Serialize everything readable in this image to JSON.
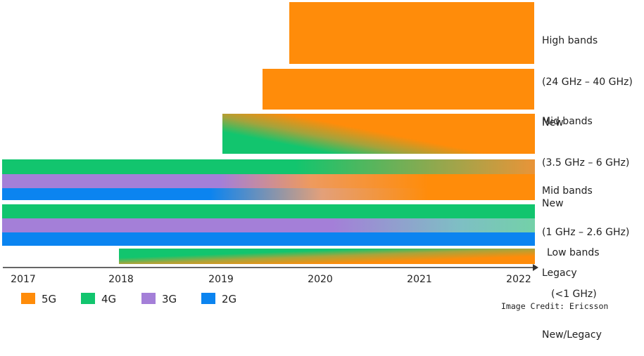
{
  "chart_data": {
    "type": "area",
    "x_ticks": [
      "2017",
      "2018",
      "2019",
      "2020",
      "2021",
      "2022"
    ],
    "xlim": [
      2017,
      2022
    ],
    "legend_position": "bottom-left",
    "colors": {
      "5G": "#ff8c0a",
      "4G": "#12c56e",
      "3G": "#a47fd8",
      "2G": "#0b84f0"
    },
    "legend": [
      {
        "name": "5G",
        "color": "#ff8c0a"
      },
      {
        "name": "4G",
        "color": "#12c56e"
      },
      {
        "name": "3G",
        "color": "#a47fd8"
      },
      {
        "name": "2G",
        "color": "#0b84f0"
      }
    ],
    "bands": [
      {
        "name": "High bands",
        "label_lines": [
          "High bands",
          "(24 GHz – 40 GHz)",
          "New"
        ],
        "bars": [
          {
            "tech": "5G",
            "start": 2019.7,
            "end": 2022,
            "fade_to": null
          }
        ]
      },
      {
        "name": "Mid bands new",
        "label_lines": [
          "Mid bands",
          "(3.5 GHz – 6 GHz)",
          "New"
        ],
        "bars": [
          {
            "tech": "5G",
            "start": 2019.45,
            "end": 2022,
            "fade_to": null
          },
          {
            "tech": "4G",
            "start": 2019.0,
            "end": 2022,
            "fade_to": "5G"
          }
        ]
      },
      {
        "name": "Mid bands legacy",
        "label_lines": [
          "Mid bands",
          "(1 GHz – 2.6 GHz)",
          "Legacy"
        ],
        "bars": [
          {
            "tech": "4G",
            "start": 2017,
            "end": 2022,
            "fade_to": "5G"
          },
          {
            "tech": "3G",
            "start": 2017,
            "end": 2022,
            "fade_to": "5G"
          },
          {
            "tech": "2G",
            "start": 2017,
            "end": 2022,
            "fade_to": "5G"
          }
        ]
      },
      {
        "name": "Low bands",
        "label_lines": [
          "Low bands",
          "(<1 GHz)",
          "New/Legacy"
        ],
        "bars": [
          {
            "tech": "4G",
            "start": 2017,
            "end": 2022,
            "fade_to": null
          },
          {
            "tech": "3G",
            "start": 2017,
            "end": 2022,
            "fade_to": "4G"
          },
          {
            "tech": "2G",
            "start": 2017,
            "end": 2022,
            "fade_to": null
          },
          {
            "tech": "4G",
            "start": 2018,
            "end": 2022,
            "fade_to": "5G"
          }
        ]
      }
    ]
  },
  "credit": "Image Credit: Ericsson"
}
